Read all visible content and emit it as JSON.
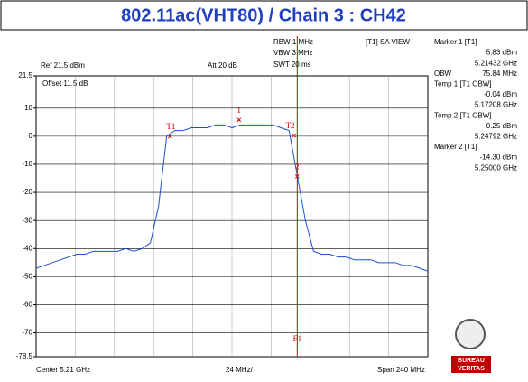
{
  "chart_data": {
    "type": "line",
    "title": "802.11ac(VHT80) / Chain 3 : CH42",
    "settings": {
      "rbw": "RBW 1 MHz",
      "vbw": "VBW 3 MHz",
      "swt": "SWT 20 ms",
      "view": "[T1] SA VIEW",
      "ref": "Ref 21.5 dBm",
      "att": "Att  20 dB",
      "offset": "Offset 11.5 dB"
    },
    "x_labels": {
      "center": "Center 5.21 GHz",
      "per_div": "24 MHz/",
      "span": "Span 240 MHz"
    },
    "xlim": [
      5.09,
      5.33
    ],
    "ylim": [
      -78.5,
      21.5
    ],
    "yticks": [
      21.5,
      10,
      0,
      -10,
      -20,
      -30,
      -40,
      -50,
      -60,
      -70,
      -78.5
    ],
    "grid": true,
    "series": [
      {
        "name": "Trace 1",
        "color": "#1f4fd0",
        "x": [
          5.09,
          5.095,
          5.1,
          5.105,
          5.11,
          5.115,
          5.12,
          5.125,
          5.13,
          5.135,
          5.14,
          5.145,
          5.15,
          5.155,
          5.16,
          5.165,
          5.17,
          5.175,
          5.18,
          5.185,
          5.19,
          5.195,
          5.2,
          5.205,
          5.21,
          5.215,
          5.22,
          5.225,
          5.23,
          5.235,
          5.24,
          5.245,
          5.25,
          5.255,
          5.26,
          5.265,
          5.27,
          5.275,
          5.28,
          5.285,
          5.29,
          5.295,
          5.3,
          5.305,
          5.31,
          5.315,
          5.32,
          5.325,
          5.33
        ],
        "values": [
          -47,
          -46,
          -45,
          -44,
          -43,
          -42,
          -42,
          -41,
          -41,
          -41,
          -41,
          -40,
          -41,
          -40,
          -38,
          -25,
          0,
          2,
          2,
          3,
          3,
          3,
          4,
          4,
          3,
          4,
          4,
          4,
          4,
          4,
          3,
          2,
          -14,
          -30,
          -41,
          -42,
          -42,
          -43,
          -43,
          -44,
          -44,
          -44,
          -45,
          -45,
          -45,
          -46,
          -46,
          -47,
          -48
        ]
      }
    ],
    "markers": [
      {
        "label": "1",
        "x": 5.21432,
        "y": 5.83
      },
      {
        "label": "T1",
        "x": 5.17208,
        "y": -0.04
      },
      {
        "label": "T2",
        "x": 5.24792,
        "y": 0.25
      },
      {
        "label": "2",
        "x": 5.25,
        "y": -14.3
      }
    ],
    "display_line": {
      "label": "F1",
      "x": 5.25
    },
    "marker_panel": [
      "Marker 1 [T1]",
      "5.83 dBm",
      "5.21432 GHz",
      "OBW",
      "75.84 MHz",
      "Temp 1 [T1 OBW]",
      "-0.04 dBm",
      "5.17208 GHz",
      "Temp 2 [T1 OBW]",
      "0.25 dBm",
      "5.24792 GHz",
      "Marker 2 [T1]",
      "-14.30 dBm",
      "5.25000 GHz"
    ]
  },
  "logo": [
    "BUREAU",
    "VERITAS"
  ]
}
